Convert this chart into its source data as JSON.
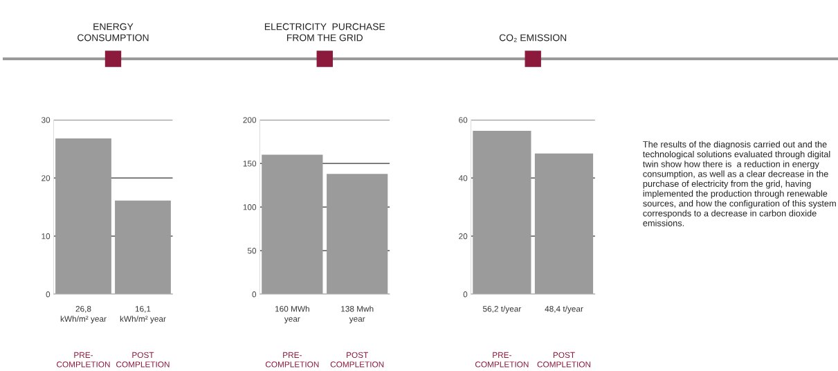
{
  "chart_data": [
    {
      "type": "bar",
      "title": "ENERGY\nCONSUMPTION",
      "categories": [
        "PRE-\nCOMPLETION",
        "POST\nCOMPLETION"
      ],
      "values": [
        26.8,
        16.1
      ],
      "value_labels": [
        "26,8\nkWh/m² year",
        "16,1\nkWh/m² year"
      ],
      "color": "#9b9b9b",
      "ylim": [
        0,
        30
      ],
      "yticks": [
        0,
        10,
        20,
        30
      ],
      "grid": "y"
    },
    {
      "type": "bar",
      "title": "ELECTRICITY  PURCHASE\nFROM THE GRID",
      "categories": [
        "PRE-\nCOMPLETION",
        "POST\nCOMPLETION"
      ],
      "values": [
        160,
        138
      ],
      "value_labels": [
        "160 MWh\nyear",
        "138 Mwh\nyear"
      ],
      "color": "#9b9b9b",
      "ylim": [
        0,
        200
      ],
      "yticks": [
        0,
        50,
        100,
        150,
        200
      ],
      "grid": "y"
    },
    {
      "type": "bar",
      "title": "CO₂ EMISSION",
      "categories": [
        "PRE-\nCOMPLETION",
        "POST\nCOMPLETION"
      ],
      "values": [
        56.2,
        48.4
      ],
      "value_labels": [
        "56,2 t/year",
        "48,4 t/year"
      ],
      "color": "#9b9b9b",
      "ylim": [
        0,
        60
      ],
      "yticks": [
        0,
        20,
        40,
        60
      ],
      "grid": "y"
    },
    {
      "type": "other",
      "annotations": [
        "The results of the diagnosis carried out and the technological solutions evaluated through digital twin show how there is  a reduction in energy consumption, as well as a clear decrease in the purchase of electricity from the grid, having implemented the production through renewable sources, and how the configuration of this system corresponds to a decrease in carbon dioxide emissions."
      ]
    }
  ]
}
